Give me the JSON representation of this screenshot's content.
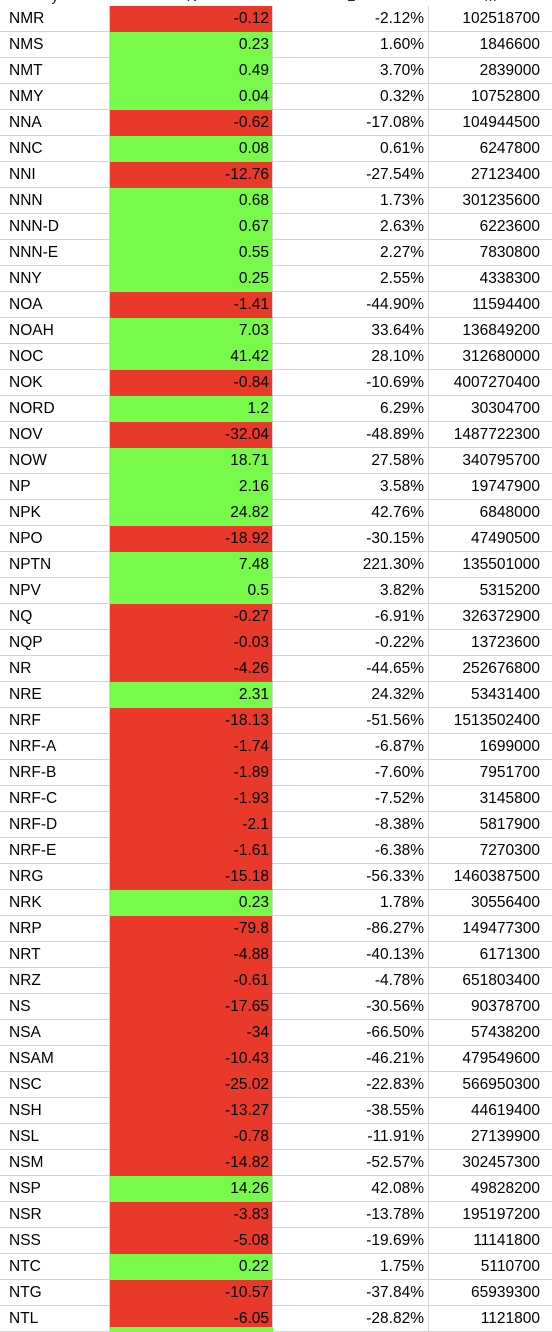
{
  "header": {
    "col1": "y",
    "col2": "K",
    "col3": "L",
    "col4": "M"
  },
  "colors": {
    "positive": "#78fa4a",
    "negative": "#e8392b"
  },
  "rows": [
    {
      "sym": "NMR",
      "chg": "-0.12",
      "pct": "-2.12%",
      "vol": "102518700"
    },
    {
      "sym": "NMS",
      "chg": "0.23",
      "pct": "1.60%",
      "vol": "1846600"
    },
    {
      "sym": "NMT",
      "chg": "0.49",
      "pct": "3.70%",
      "vol": "2839000"
    },
    {
      "sym": "NMY",
      "chg": "0.04",
      "pct": "0.32%",
      "vol": "10752800"
    },
    {
      "sym": "NNA",
      "chg": "-0.62",
      "pct": "-17.08%",
      "vol": "104944500"
    },
    {
      "sym": "NNC",
      "chg": "0.08",
      "pct": "0.61%",
      "vol": "6247800"
    },
    {
      "sym": "NNI",
      "chg": "-12.76",
      "pct": "-27.54%",
      "vol": "27123400"
    },
    {
      "sym": "NNN",
      "chg": "0.68",
      "pct": "1.73%",
      "vol": "301235600"
    },
    {
      "sym": "NNN-D",
      "chg": "0.67",
      "pct": "2.63%",
      "vol": "6223600"
    },
    {
      "sym": "NNN-E",
      "chg": "0.55",
      "pct": "2.27%",
      "vol": "7830800"
    },
    {
      "sym": "NNY",
      "chg": "0.25",
      "pct": "2.55%",
      "vol": "4338300"
    },
    {
      "sym": "NOA",
      "chg": "-1.41",
      "pct": "-44.90%",
      "vol": "11594400"
    },
    {
      "sym": "NOAH",
      "chg": "7.03",
      "pct": "33.64%",
      "vol": "136849200"
    },
    {
      "sym": "NOC",
      "chg": "41.42",
      "pct": "28.10%",
      "vol": "312680000"
    },
    {
      "sym": "NOK",
      "chg": "-0.84",
      "pct": "-10.69%",
      "vol": "4007270400"
    },
    {
      "sym": "NORD",
      "chg": "1.2",
      "pct": "6.29%",
      "vol": "30304700"
    },
    {
      "sym": "NOV",
      "chg": "-32.04",
      "pct": "-48.89%",
      "vol": "1487722300"
    },
    {
      "sym": "NOW",
      "chg": "18.71",
      "pct": "27.58%",
      "vol": "340795700"
    },
    {
      "sym": "NP",
      "chg": "2.16",
      "pct": "3.58%",
      "vol": "19747900"
    },
    {
      "sym": "NPK",
      "chg": "24.82",
      "pct": "42.76%",
      "vol": "6848000"
    },
    {
      "sym": "NPO",
      "chg": "-18.92",
      "pct": "-30.15%",
      "vol": "47490500"
    },
    {
      "sym": "NPTN",
      "chg": "7.48",
      "pct": "221.30%",
      "vol": "135501000"
    },
    {
      "sym": "NPV",
      "chg": "0.5",
      "pct": "3.82%",
      "vol": "5315200"
    },
    {
      "sym": "NQ",
      "chg": "-0.27",
      "pct": "-6.91%",
      "vol": "326372900"
    },
    {
      "sym": "NQP",
      "chg": "-0.03",
      "pct": "-0.22%",
      "vol": "13723600"
    },
    {
      "sym": "NR",
      "chg": "-4.26",
      "pct": "-44.65%",
      "vol": "252676800"
    },
    {
      "sym": "NRE",
      "chg": "2.31",
      "pct": "24.32%",
      "vol": "53431400"
    },
    {
      "sym": "NRF",
      "chg": "-18.13",
      "pct": "-51.56%",
      "vol": "1513502400"
    },
    {
      "sym": "NRF-A",
      "chg": "-1.74",
      "pct": "-6.87%",
      "vol": "1699000"
    },
    {
      "sym": "NRF-B",
      "chg": "-1.89",
      "pct": "-7.60%",
      "vol": "7951700"
    },
    {
      "sym": "NRF-C",
      "chg": "-1.93",
      "pct": "-7.52%",
      "vol": "3145800"
    },
    {
      "sym": "NRF-D",
      "chg": "-2.1",
      "pct": "-8.38%",
      "vol": "5817900"
    },
    {
      "sym": "NRF-E",
      "chg": "-1.61",
      "pct": "-6.38%",
      "vol": "7270300"
    },
    {
      "sym": "NRG",
      "chg": "-15.18",
      "pct": "-56.33%",
      "vol": "1460387500"
    },
    {
      "sym": "NRK",
      "chg": "0.23",
      "pct": "1.78%",
      "vol": "30556400"
    },
    {
      "sym": "NRP",
      "chg": "-79.8",
      "pct": "-86.27%",
      "vol": "149477300"
    },
    {
      "sym": "NRT",
      "chg": "-4.88",
      "pct": "-40.13%",
      "vol": "6171300"
    },
    {
      "sym": "NRZ",
      "chg": "-0.61",
      "pct": "-4.78%",
      "vol": "651803400"
    },
    {
      "sym": "NS",
      "chg": "-17.65",
      "pct": "-30.56%",
      "vol": "90378700"
    },
    {
      "sym": "NSA",
      "chg": "-34",
      "pct": "-66.50%",
      "vol": "57438200"
    },
    {
      "sym": "NSAM",
      "chg": "-10.43",
      "pct": "-46.21%",
      "vol": "479549600"
    },
    {
      "sym": "NSC",
      "chg": "-25.02",
      "pct": "-22.83%",
      "vol": "566950300"
    },
    {
      "sym": "NSH",
      "chg": "-13.27",
      "pct": "-38.55%",
      "vol": "44619400"
    },
    {
      "sym": "NSL",
      "chg": "-0.78",
      "pct": "-11.91%",
      "vol": "27139900"
    },
    {
      "sym": "NSM",
      "chg": "-14.82",
      "pct": "-52.57%",
      "vol": "302457300"
    },
    {
      "sym": "NSP",
      "chg": "14.26",
      "pct": "42.08%",
      "vol": "49828200"
    },
    {
      "sym": "NSR",
      "chg": "-3.83",
      "pct": "-13.78%",
      "vol": "195197200"
    },
    {
      "sym": "NSS",
      "chg": "-5.08",
      "pct": "-19.69%",
      "vol": "11141800"
    },
    {
      "sym": "NTC",
      "chg": "0.22",
      "pct": "1.75%",
      "vol": "5110700"
    },
    {
      "sym": "NTG",
      "chg": "-10.57",
      "pct": "-37.84%",
      "vol": "65939300"
    },
    {
      "sym": "NTL",
      "chg": "-6.05",
      "pct": "-28.82%",
      "vol": "1121800"
    }
  ]
}
